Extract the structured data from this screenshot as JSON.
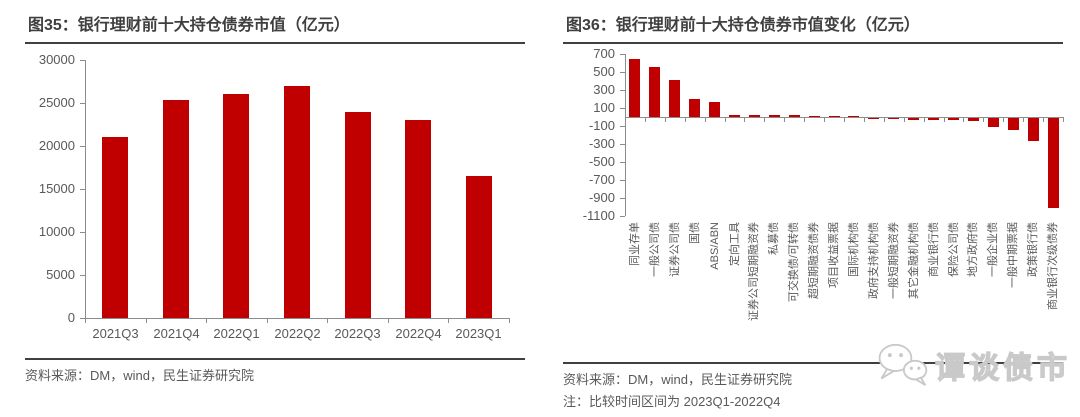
{
  "figures": [
    {
      "id": "fig35",
      "title": "图35：银行理财前十大持仓债券市值（亿元）",
      "source": "资料来源：DM，wind，民生证券研究院"
    },
    {
      "id": "fig36",
      "title": "图36：银行理财前十大持仓债券市值变化（亿元）",
      "source": "资料来源：DM，wind，民生证券研究院",
      "note": "注：比较时间区间为 2023Q1-2022Q4"
    }
  ],
  "watermark": {
    "text": "谭谈债市",
    "icon": "wechat-logo"
  },
  "colors": {
    "bar": "#c00000",
    "axis_line": "#8c8c8c",
    "axis_text": "#595959",
    "title_text": "#3f3f3f",
    "rule": "#404040",
    "source_text": "#595959",
    "watermark": "#c9c9c9"
  },
  "chart_data": [
    {
      "type": "bar",
      "title": "图35：银行理财前十大持仓债券市值（亿元）",
      "categories": [
        "2021Q3",
        "2021Q4",
        "2022Q1",
        "2022Q2",
        "2022Q3",
        "2022Q4",
        "2023Q1"
      ],
      "values": [
        21100,
        25400,
        26000,
        27000,
        23900,
        23000,
        16500
      ],
      "xlabel": "",
      "ylabel": "",
      "ylim": [
        0,
        30000
      ],
      "ytick_step": 5000,
      "grid": false,
      "legend": null,
      "bar_color": "#c00000"
    },
    {
      "type": "bar",
      "title": "图36：银行理财前十大持仓债券市值变化（亿元）",
      "categories": [
        "同业存单",
        "一般公司债",
        "证券公司债",
        "国债",
        "ABS/ABN",
        "定向工具",
        "证券公司短期融资券",
        "私募债",
        "可交换债/可转债",
        "超短期融资债券",
        "项目收益票据",
        "国际机构债",
        "政府支持机构债",
        "一般短期融资券",
        "其它金融机构债",
        "商业银行债",
        "保险公司债",
        "地方政府债",
        "一般企业债",
        "一般中期票据",
        "政策银行债",
        "商业银行次级债券"
      ],
      "values": [
        640,
        555,
        415,
        205,
        170,
        25,
        25,
        18,
        18,
        10,
        5,
        3,
        -12,
        -15,
        -18,
        -18,
        -25,
        -30,
        -95,
        -130,
        -260,
        -1000
      ],
      "xlabel": "",
      "ylabel": "",
      "ylim": [
        -1100,
        700
      ],
      "ytick_step": 200,
      "grid": false,
      "legend": null,
      "bar_color": "#c00000",
      "label_rotation": -90
    }
  ]
}
